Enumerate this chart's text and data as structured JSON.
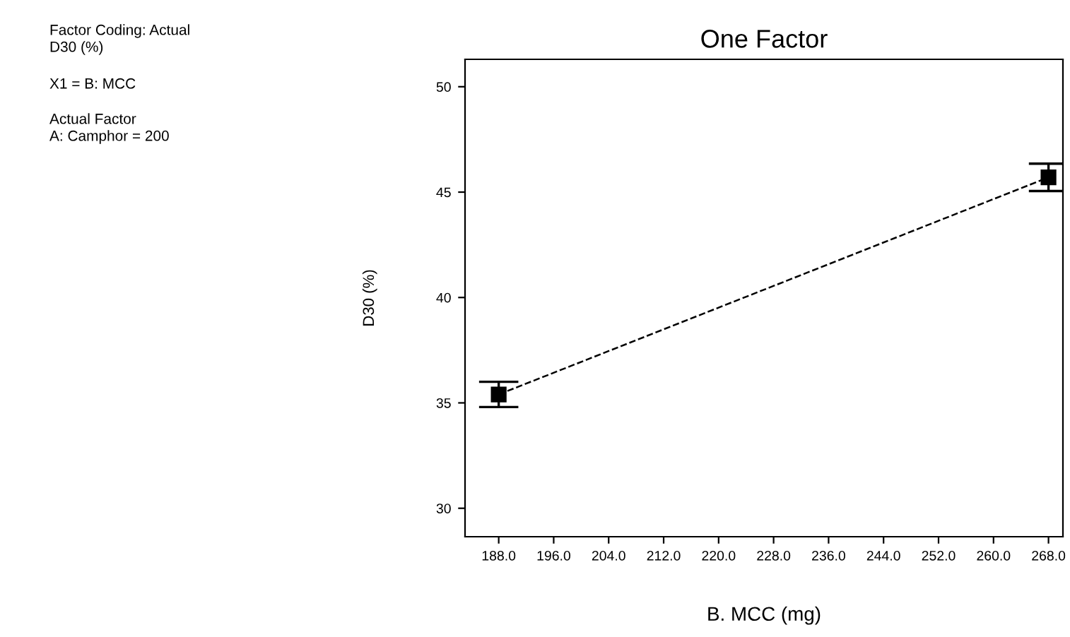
{
  "chart_data": {
    "type": "line",
    "title": "One Factor",
    "xlabel": "B. MCC (mg)",
    "ylabel": "D30 (%)",
    "annotations": [
      "Factor Coding: Actual",
      "D30 (%)",
      "X1 = B: MCC",
      "Actual Factor",
      "A: Camphor = 200"
    ],
    "x": [
      188,
      268
    ],
    "series": [
      {
        "color": "#000000",
        "values": [
          35.4,
          45.7
        ],
        "errors": [
          0.6,
          0.65
        ]
      }
    ],
    "marker": "square",
    "line_style": "dashed",
    "xlim": [
      183.1,
      270.1
    ],
    "ylim": [
      28.65,
      51.3
    ],
    "xticks": [
      {
        "value": 188,
        "label": "188.0"
      },
      {
        "value": 196,
        "label": "196.0"
      },
      {
        "value": 204,
        "label": "204.0"
      },
      {
        "value": 212,
        "label": "212.0"
      },
      {
        "value": 220,
        "label": "220.0"
      },
      {
        "value": 228,
        "label": "228.0"
      },
      {
        "value": 236,
        "label": "236.0"
      },
      {
        "value": 244,
        "label": "244.0"
      },
      {
        "value": 252,
        "label": "252.0"
      },
      {
        "value": 260,
        "label": "260.0"
      },
      {
        "value": 268,
        "label": "268.0"
      }
    ],
    "yticks": [
      30,
      35,
      40,
      45,
      50
    ],
    "grid": false,
    "legend": false
  }
}
